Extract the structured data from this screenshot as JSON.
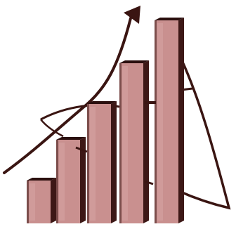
{
  "illustration": {
    "name": "growth-bar-chart-clipart",
    "colors": {
      "bar_face": "#c9908f",
      "bar_face_light": "#d6a3a1",
      "bar_side": "#3d1816",
      "bar_top": "#2a0f0e",
      "curve": "#3a1512",
      "arrow": "#3a1512",
      "background": "#ffffff"
    },
    "bar_levels": [
      0.18,
      0.35,
      0.5,
      0.67,
      0.85
    ]
  }
}
